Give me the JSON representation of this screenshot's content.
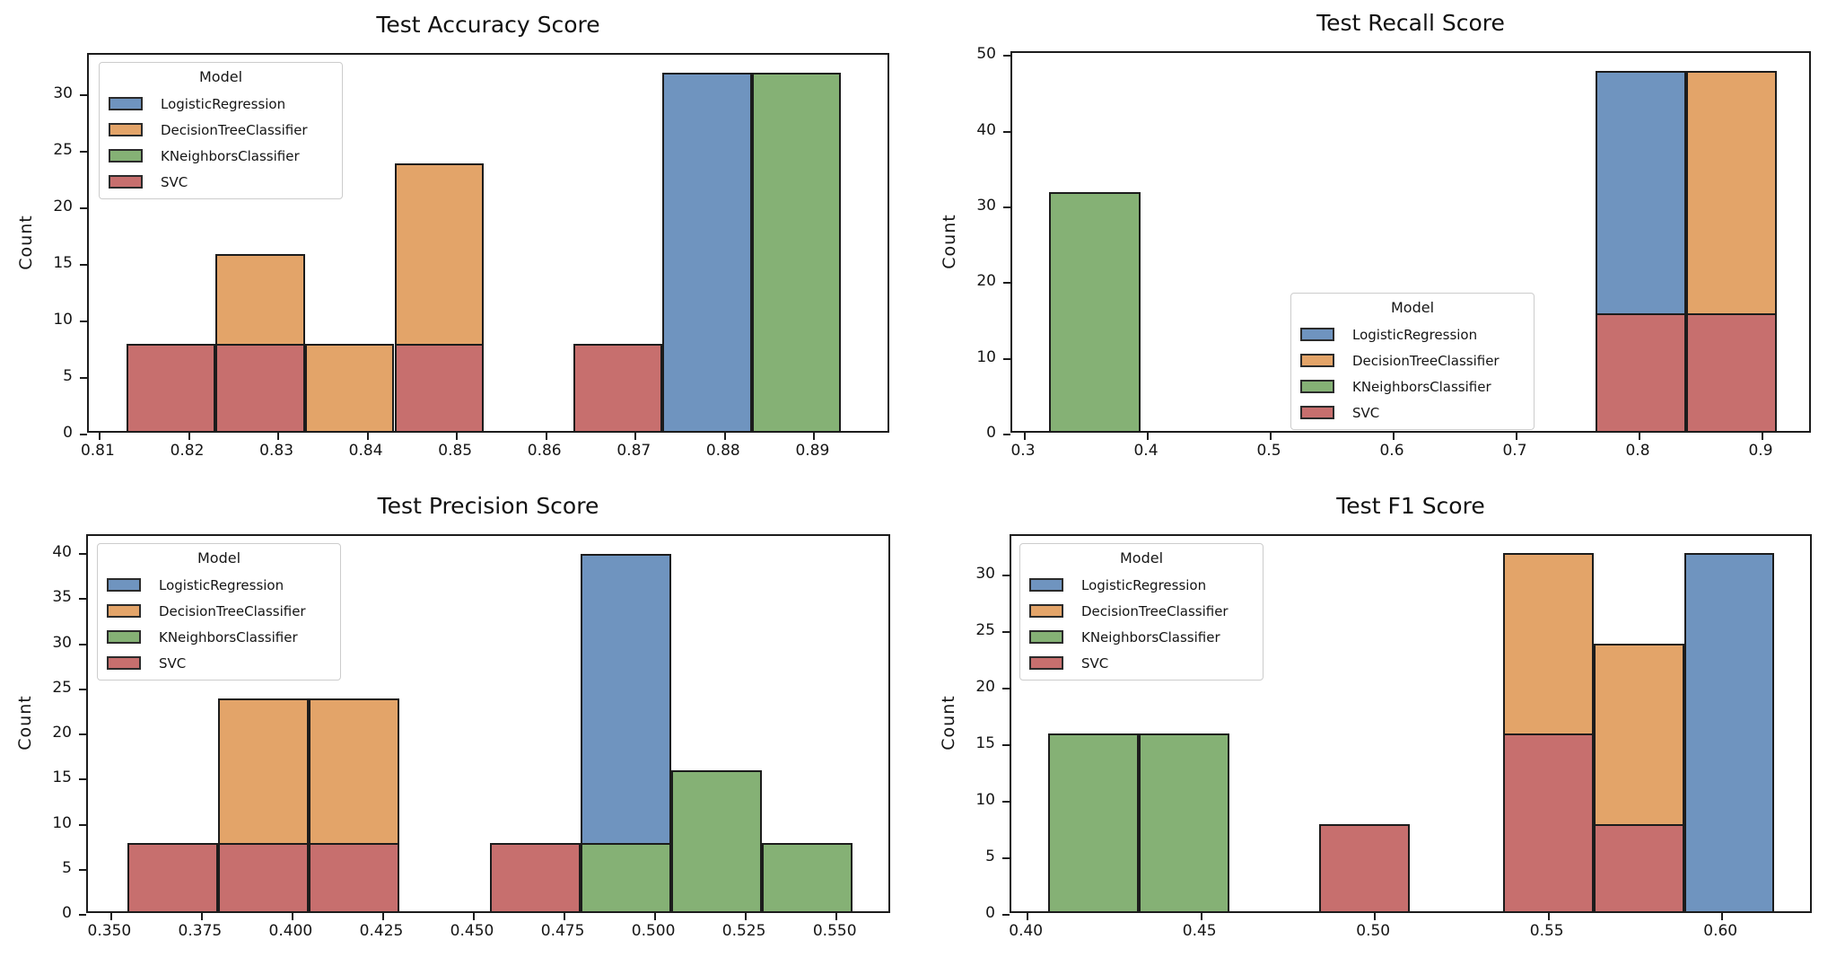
{
  "figure": {
    "background": "#ffffff",
    "ylabel": "Count"
  },
  "models": {
    "legend_title": "Model",
    "edge_color": "#1c1c1c",
    "series": [
      {
        "name": "LogisticRegression",
        "color": "#6f94bf"
      },
      {
        "name": "DecisionTreeClassifier",
        "color": "#e3a469"
      },
      {
        "name": "KNeighborsClassifier",
        "color": "#85b175"
      },
      {
        "name": "SVC",
        "color": "#c76f6e"
      }
    ]
  },
  "chart_data": [
    {
      "id": "accuracy",
      "type": "bar",
      "title": "Test Accuracy Score",
      "xlabel": "",
      "ylabel": "Count",
      "xlim": [
        0.8088,
        0.8986
      ],
      "ylim": [
        0,
        33.6
      ],
      "xticks": [
        0.81,
        0.82,
        0.83,
        0.84,
        0.85,
        0.86,
        0.87,
        0.88,
        0.89
      ],
      "xtick_labels": [
        "0.81",
        "0.82",
        "0.83",
        "0.84",
        "0.85",
        "0.86",
        "0.87",
        "0.88",
        "0.89"
      ],
      "yticks": [
        0,
        5,
        10,
        15,
        20,
        25,
        30
      ],
      "legend_loc": "upper left",
      "bars": [
        {
          "series": "LogisticRegression",
          "x0": 0.873,
          "x1": 0.883,
          "count": 32
        },
        {
          "series": "DecisionTreeClassifier",
          "x0": 0.823,
          "x1": 0.833,
          "count": 16
        },
        {
          "series": "DecisionTreeClassifier",
          "x0": 0.833,
          "x1": 0.843,
          "count": 8
        },
        {
          "series": "DecisionTreeClassifier",
          "x0": 0.843,
          "x1": 0.853,
          "count": 24
        },
        {
          "series": "KNeighborsClassifier",
          "x0": 0.883,
          "x1": 0.893,
          "count": 32
        },
        {
          "series": "SVC",
          "x0": 0.813,
          "x1": 0.823,
          "count": 8
        },
        {
          "series": "SVC",
          "x0": 0.823,
          "x1": 0.833,
          "count": 8
        },
        {
          "series": "SVC",
          "x0": 0.843,
          "x1": 0.853,
          "count": 8
        },
        {
          "series": "SVC",
          "x0": 0.863,
          "x1": 0.873,
          "count": 8
        }
      ]
    },
    {
      "id": "recall",
      "type": "bar",
      "title": "Test Recall Score",
      "xlabel": "",
      "ylabel": "Count",
      "xlim": [
        0.2898,
        0.9409
      ],
      "ylim": [
        0,
        50.4
      ],
      "xticks": [
        0.3,
        0.4,
        0.5,
        0.6,
        0.7,
        0.8,
        0.9
      ],
      "xtick_labels": [
        "0.3",
        "0.4",
        "0.5",
        "0.6",
        "0.7",
        "0.8",
        "0.9"
      ],
      "yticks": [
        0,
        10,
        20,
        30,
        40,
        50
      ],
      "legend_loc": "center right",
      "bars": [
        {
          "series": "LogisticRegression",
          "x0": 0.764,
          "x1": 0.838,
          "count": 48
        },
        {
          "series": "DecisionTreeClassifier",
          "x0": 0.838,
          "x1": 0.912,
          "count": 48
        },
        {
          "series": "KNeighborsClassifier",
          "x0": 0.32,
          "x1": 0.394,
          "count": 32
        },
        {
          "series": "SVC",
          "x0": 0.764,
          "x1": 0.838,
          "count": 16
        },
        {
          "series": "SVC",
          "x0": 0.838,
          "x1": 0.912,
          "count": 16
        }
      ]
    },
    {
      "id": "precision",
      "type": "bar",
      "title": "Test Precision Score",
      "xlabel": "",
      "ylabel": "Count",
      "xlim": [
        0.3436,
        0.5653
      ],
      "ylim": [
        0,
        42
      ],
      "xticks": [
        0.35,
        0.375,
        0.4,
        0.425,
        0.45,
        0.475,
        0.5,
        0.525,
        0.55
      ],
      "xtick_labels": [
        "0.350",
        "0.375",
        "0.400",
        "0.425",
        "0.450",
        "0.475",
        "0.500",
        "0.525",
        "0.550"
      ],
      "yticks": [
        0,
        5,
        10,
        15,
        20,
        25,
        30,
        35,
        40
      ],
      "legend_loc": "upper left",
      "bars": [
        {
          "series": "LogisticRegression",
          "x0": 0.4795,
          "x1": 0.5045,
          "count": 40
        },
        {
          "series": "DecisionTreeClassifier",
          "x0": 0.3795,
          "x1": 0.4045,
          "count": 24
        },
        {
          "series": "DecisionTreeClassifier",
          "x0": 0.4045,
          "x1": 0.4295,
          "count": 24
        },
        {
          "series": "KNeighborsClassifier",
          "x0": 0.4795,
          "x1": 0.5045,
          "count": 8
        },
        {
          "series": "KNeighborsClassifier",
          "x0": 0.5045,
          "x1": 0.5295,
          "count": 16
        },
        {
          "series": "KNeighborsClassifier",
          "x0": 0.5295,
          "x1": 0.5545,
          "count": 8
        },
        {
          "series": "SVC",
          "x0": 0.3545,
          "x1": 0.3795,
          "count": 8
        },
        {
          "series": "SVC",
          "x0": 0.3795,
          "x1": 0.4045,
          "count": 8
        },
        {
          "series": "SVC",
          "x0": 0.4045,
          "x1": 0.4295,
          "count": 8
        },
        {
          "series": "SVC",
          "x0": 0.4545,
          "x1": 0.4795,
          "count": 8
        }
      ]
    },
    {
      "id": "f1",
      "type": "bar",
      "title": "Test F1 Score",
      "xlabel": "",
      "ylabel": "Count",
      "xlim": [
        0.3953,
        0.6263
      ],
      "ylim": [
        0,
        33.5
      ],
      "xticks": [
        0.4,
        0.45,
        0.5,
        0.55,
        0.6
      ],
      "xtick_labels": [
        "0.40",
        "0.45",
        "0.50",
        "0.55",
        "0.60"
      ],
      "yticks": [
        0,
        5,
        10,
        15,
        20,
        25,
        30
      ],
      "legend_loc": "upper left",
      "bars": [
        {
          "series": "LogisticRegression",
          "x0": 0.589,
          "x1": 0.615,
          "count": 32
        },
        {
          "series": "DecisionTreeClassifier",
          "x0": 0.537,
          "x1": 0.563,
          "count": 32
        },
        {
          "series": "DecisionTreeClassifier",
          "x0": 0.563,
          "x1": 0.589,
          "count": 24
        },
        {
          "series": "KNeighborsClassifier",
          "x0": 0.406,
          "x1": 0.432,
          "count": 16
        },
        {
          "series": "KNeighborsClassifier",
          "x0": 0.432,
          "x1": 0.458,
          "count": 16
        },
        {
          "series": "SVC",
          "x0": 0.484,
          "x1": 0.51,
          "count": 8
        },
        {
          "series": "SVC",
          "x0": 0.537,
          "x1": 0.563,
          "count": 16
        },
        {
          "series": "SVC",
          "x0": 0.563,
          "x1": 0.589,
          "count": 8
        }
      ]
    }
  ]
}
